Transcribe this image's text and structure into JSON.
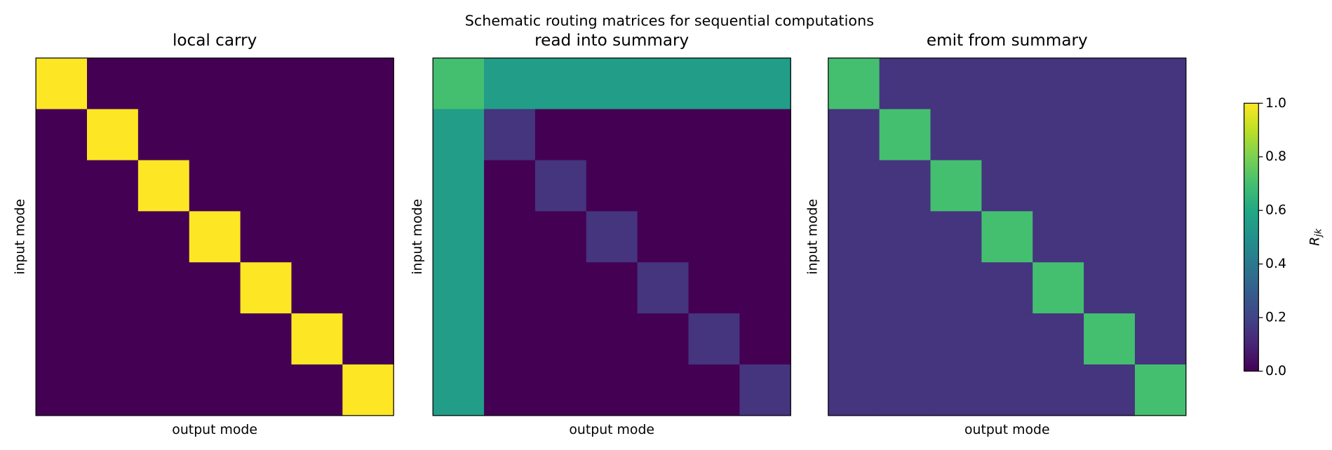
{
  "title": "Schematic routing matrices for sequential computations",
  "chart_data": [
    {
      "type": "heatmap",
      "title": "local carry",
      "xlabel": "output mode",
      "ylabel": "input mode",
      "colormap": "viridis",
      "zlim": [
        0,
        1
      ],
      "values": [
        [
          1,
          0,
          0,
          0,
          0,
          0,
          0
        ],
        [
          0,
          1,
          0,
          0,
          0,
          0,
          0
        ],
        [
          0,
          0,
          1,
          0,
          0,
          0,
          0
        ],
        [
          0,
          0,
          0,
          1,
          0,
          0,
          0
        ],
        [
          0,
          0,
          0,
          0,
          1,
          0,
          0
        ],
        [
          0,
          0,
          0,
          0,
          0,
          1,
          0
        ],
        [
          0,
          0,
          0,
          0,
          0,
          0,
          1
        ]
      ]
    },
    {
      "type": "heatmap",
      "title": "read into summary",
      "xlabel": "output mode",
      "ylabel": "input mode",
      "colormap": "viridis",
      "zlim": [
        0,
        1
      ],
      "values": [
        [
          0.7,
          0.55,
          0.55,
          0.55,
          0.55,
          0.55,
          0.55
        ],
        [
          0.55,
          0.15,
          0,
          0,
          0,
          0,
          0
        ],
        [
          0.55,
          0,
          0.15,
          0,
          0,
          0,
          0
        ],
        [
          0.55,
          0,
          0,
          0.15,
          0,
          0,
          0
        ],
        [
          0.55,
          0,
          0,
          0,
          0.15,
          0,
          0
        ],
        [
          0.55,
          0,
          0,
          0,
          0,
          0.15,
          0
        ],
        [
          0.55,
          0,
          0,
          0,
          0,
          0,
          0.15
        ]
      ]
    },
    {
      "type": "heatmap",
      "title": "emit from summary",
      "xlabel": "output mode",
      "ylabel": "input mode",
      "colormap": "viridis",
      "zlim": [
        0,
        1
      ],
      "values": [
        [
          0.7,
          0.15,
          0.15,
          0.15,
          0.15,
          0.15,
          0.15
        ],
        [
          0.15,
          0.7,
          0.15,
          0.15,
          0.15,
          0.15,
          0.15
        ],
        [
          0.15,
          0.15,
          0.7,
          0.15,
          0.15,
          0.15,
          0.15
        ],
        [
          0.15,
          0.15,
          0.15,
          0.7,
          0.15,
          0.15,
          0.15
        ],
        [
          0.15,
          0.15,
          0.15,
          0.15,
          0.7,
          0.15,
          0.15
        ],
        [
          0.15,
          0.15,
          0.15,
          0.15,
          0.15,
          0.7,
          0.15
        ],
        [
          0.15,
          0.15,
          0.15,
          0.15,
          0.15,
          0.15,
          0.7
        ]
      ]
    }
  ],
  "colorbar": {
    "label": "R_jk",
    "lim": [
      0,
      1
    ],
    "colormap": "viridis",
    "ticks": [
      {
        "value": 0,
        "label": "0.0"
      },
      0.2,
      0.4,
      0.6,
      0.8,
      {
        "value": 1,
        "label": "1.0"
      }
    ]
  }
}
